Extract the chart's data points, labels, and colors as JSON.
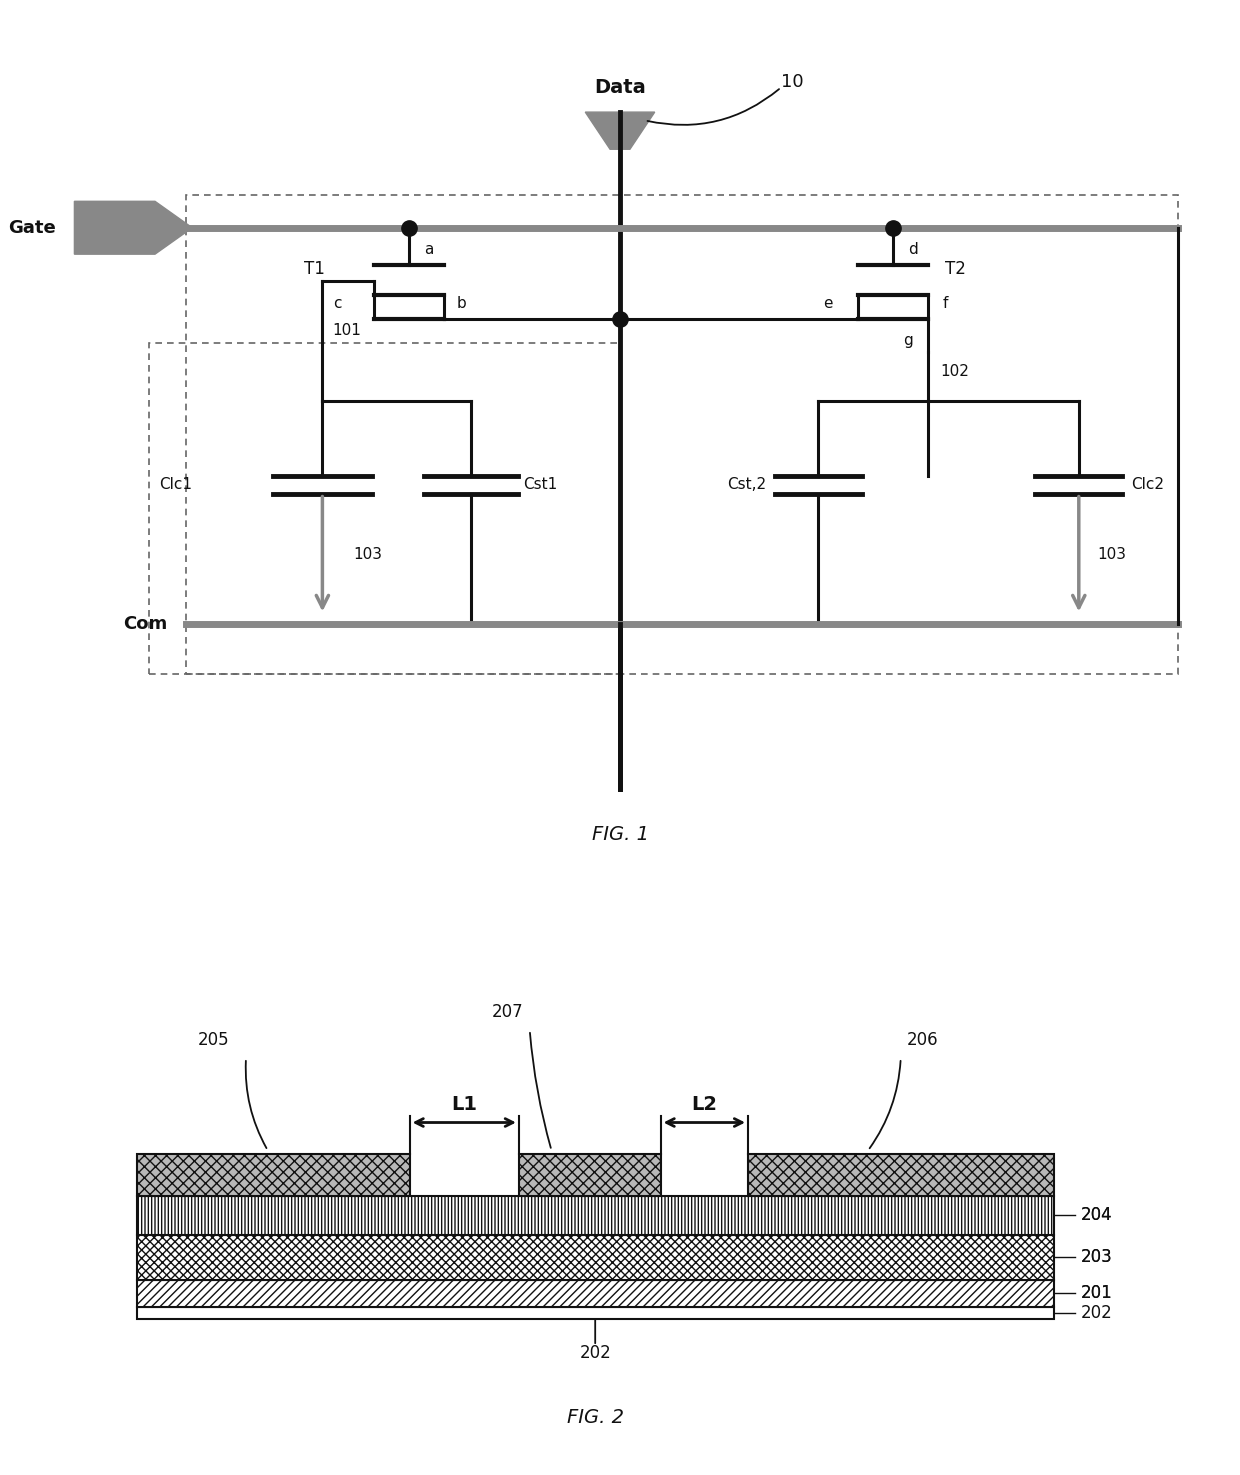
{
  "fig_width": 12.4,
  "fig_height": 14.75,
  "bg_color": "#ffffff",
  "fig1_title": "FIG. 1",
  "fig2_title": "FIG. 2",
  "label_10": "10",
  "label_data": "Data",
  "label_gate": "Gate",
  "label_com": "Com",
  "label_T1": "T1",
  "label_T2": "T2",
  "label_Clc1": "Clc1",
  "label_Cst1": "Cst1",
  "label_Cst2": "Cst,2",
  "label_Clc2": "Clc2",
  "label_101": "101",
  "label_102": "102",
  "label_103": "103",
  "label_a": "a",
  "label_b": "b",
  "label_c": "c",
  "label_d": "d",
  "label_e": "e",
  "label_f": "f",
  "label_g": "g",
  "label_205": "205",
  "label_206": "206",
  "label_207": "207",
  "label_204": "204",
  "label_203": "203",
  "label_202": "202",
  "label_201": "201",
  "label_L1": "L1",
  "label_L2": "L2"
}
